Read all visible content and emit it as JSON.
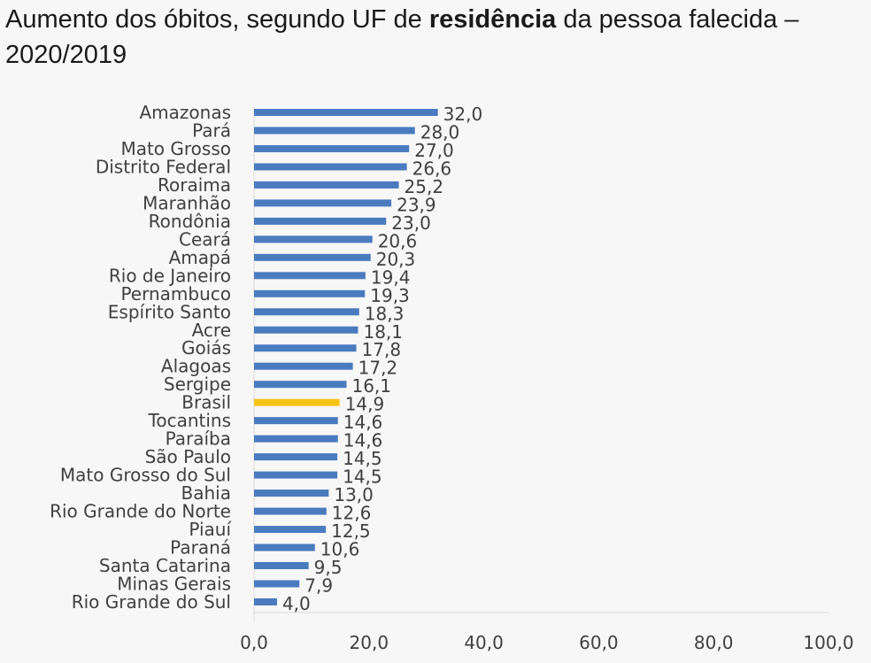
{
  "title": {
    "part1": "Aumento dos óbitos, segundo UF de ",
    "bold": "residência",
    "part2": " da pessoa falecida – 2020/2019"
  },
  "colors": {
    "bar": "#4a7bbf",
    "highlight": "#f5c518",
    "axis": "#d9d9d9"
  },
  "chart_data": {
    "type": "bar",
    "orientation": "horizontal",
    "categories": [
      "Amazonas",
      "Pará",
      "Mato Grosso",
      "Distrito Federal",
      "Roraima",
      "Maranhão",
      "Rondônia",
      "Ceará",
      "Amapá",
      "Rio de Janeiro",
      "Pernambuco",
      "Espírito Santo",
      "Acre",
      "Goiás",
      "Alagoas",
      "Sergipe",
      "Brasil",
      "Tocantins",
      "Paraíba",
      "São Paulo",
      "Mato Grosso do Sul",
      "Bahia",
      "Rio Grande do Norte",
      "Piauí",
      "Paraná",
      "Santa Catarina",
      "Minas Gerais",
      "Rio Grande do Sul"
    ],
    "values": [
      32.0,
      28.0,
      27.0,
      26.6,
      25.2,
      23.9,
      23.0,
      20.6,
      20.3,
      19.4,
      19.3,
      18.3,
      18.1,
      17.8,
      17.2,
      16.1,
      14.9,
      14.6,
      14.6,
      14.5,
      14.5,
      13.0,
      12.6,
      12.5,
      10.6,
      9.5,
      7.9,
      4.0
    ],
    "value_labels": [
      "32,0",
      "28,0",
      "27,0",
      "26,6",
      "25,2",
      "23,9",
      "23,0",
      "20,6",
      "20,3",
      "19,4",
      "19,3",
      "18,3",
      "18,1",
      "17,8",
      "17,2",
      "16,1",
      "14,9",
      "14,6",
      "14,6",
      "14,5",
      "14,5",
      "13,0",
      "12,6",
      "12,5",
      "10,6",
      "9,5",
      "7,9",
      "4,0"
    ],
    "highlight": "Brasil",
    "xlim": [
      0,
      100
    ],
    "xticks": [
      "0,0",
      "20,0",
      "40,0",
      "60,0",
      "80,0",
      "100,0"
    ],
    "xlabel": "",
    "ylabel": "",
    "grid": false,
    "legend": "none"
  }
}
